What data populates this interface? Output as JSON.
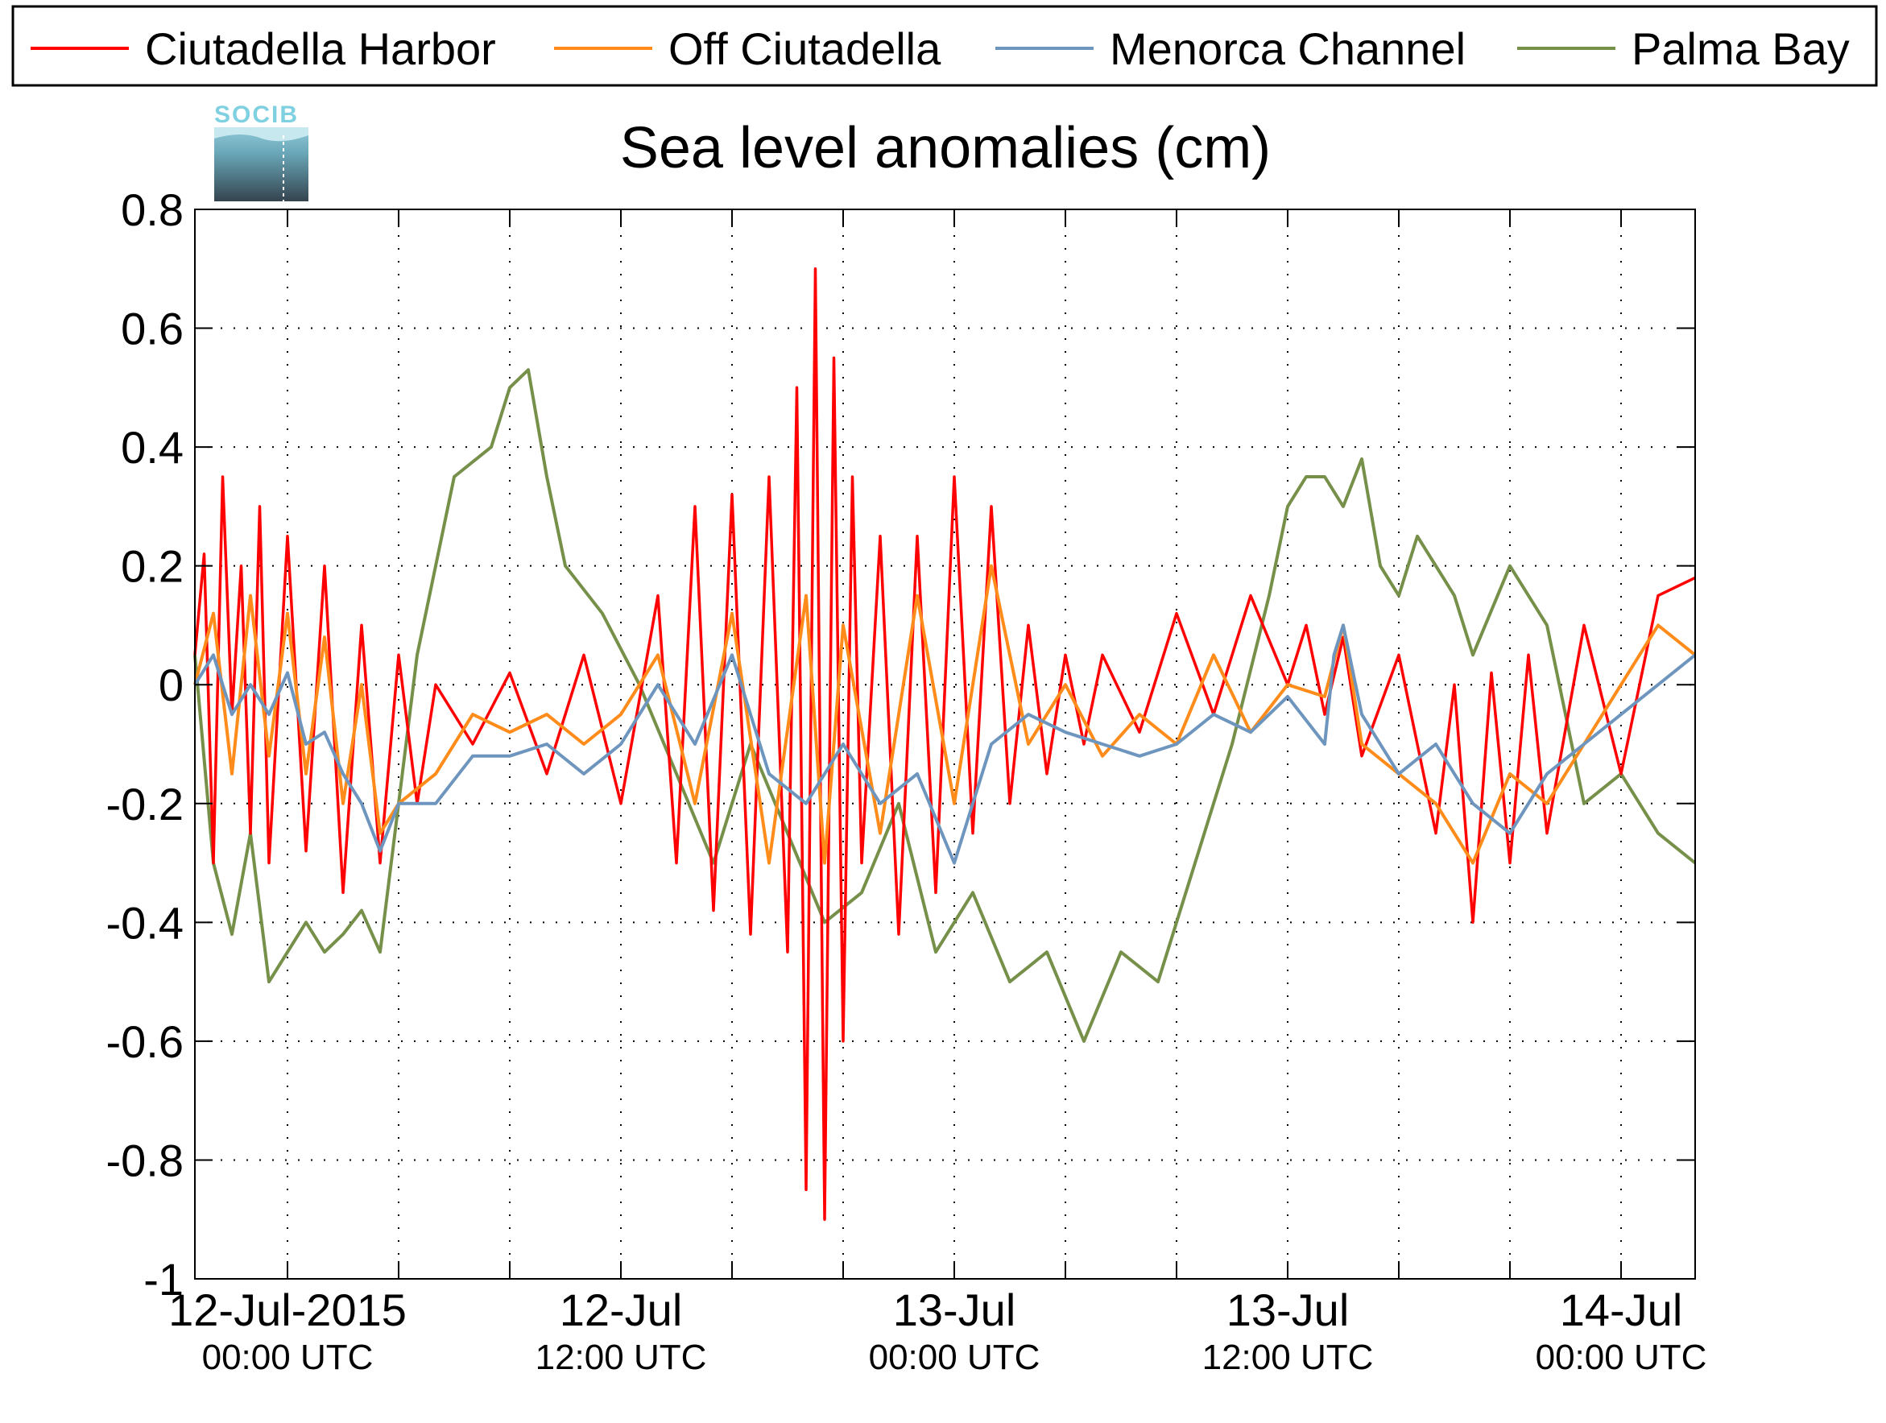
{
  "logo": {
    "text": "SOCIB"
  },
  "chart_data": {
    "type": "line",
    "title": "Sea level anomalies (cm)",
    "xlabel": "",
    "ylabel": "",
    "ylim": [
      -1,
      0.8
    ],
    "yticks": [
      -1,
      -0.8,
      -0.6,
      -0.4,
      -0.2,
      0,
      0.2,
      0.4,
      0.6,
      0.8
    ],
    "ytick_labels": [
      "-1",
      "-0.8",
      "-0.6",
      "-0.4",
      "-0.2",
      "0",
      "0.2",
      "0.4",
      "0.6",
      "0.8"
    ],
    "x_unit": "hours since 12-Jul-2015 00:00 UTC",
    "xlim": [
      -5,
      76
    ],
    "xticks": [
      0,
      18,
      36,
      54,
      72
    ],
    "xtick_labels": [
      {
        "date": "12-Jul-2015",
        "time": "00:00 UTC"
      },
      {
        "date": "12-Jul",
        "time": "12:00 UTC"
      },
      {
        "date": "13-Jul",
        "time": "00:00 UTC"
      },
      {
        "date": "13-Jul",
        "time": "12:00 UTC"
      },
      {
        "date": "14-Jul",
        "time": "00:00 UTC"
      }
    ],
    "grid": true,
    "legend": "top",
    "series": [
      {
        "name": "Ciutadella Harbor",
        "color": "#ff0000",
        "x": [
          -5,
          -4.5,
          -4,
          -3.5,
          -3,
          -2.5,
          -2,
          -1.5,
          -1,
          0,
          1,
          2,
          3,
          4,
          5,
          6,
          7,
          8,
          10,
          12,
          14,
          16,
          18,
          20,
          21,
          22,
          23,
          24,
          25,
          26,
          27,
          27.5,
          28,
          28.5,
          29,
          29.5,
          30,
          30.5,
          31,
          32,
          33,
          34,
          35,
          36,
          37,
          38,
          39,
          40,
          41,
          42,
          43,
          44,
          46,
          48,
          50,
          52,
          54,
          55,
          56,
          57,
          58,
          60,
          62,
          63,
          64,
          65,
          66,
          67,
          68,
          70,
          72,
          74,
          76
        ],
        "y": [
          0.05,
          0.22,
          -0.3,
          0.35,
          -0.05,
          0.2,
          -0.25,
          0.3,
          -0.3,
          0.25,
          -0.28,
          0.2,
          -0.35,
          0.1,
          -0.3,
          0.05,
          -0.2,
          0.0,
          -0.1,
          0.02,
          -0.15,
          0.05,
          -0.2,
          0.15,
          -0.3,
          0.3,
          -0.38,
          0.32,
          -0.42,
          0.35,
          -0.45,
          0.5,
          -0.85,
          0.7,
          -0.9,
          0.55,
          -0.6,
          0.35,
          -0.3,
          0.25,
          -0.42,
          0.25,
          -0.35,
          0.35,
          -0.25,
          0.3,
          -0.2,
          0.1,
          -0.15,
          0.05,
          -0.1,
          0.05,
          -0.08,
          0.12,
          -0.05,
          0.15,
          0.0,
          0.1,
          -0.05,
          0.08,
          -0.12,
          0.05,
          -0.25,
          0.0,
          -0.4,
          0.02,
          -0.3,
          0.05,
          -0.25,
          0.1,
          -0.15,
          0.15,
          0.18
        ]
      },
      {
        "name": "Off Ciutadella",
        "color": "#ff8c1a",
        "x": [
          -5,
          -4,
          -3,
          -2,
          -1,
          0,
          1,
          2,
          3,
          4,
          5,
          6,
          8,
          10,
          12,
          14,
          16,
          18,
          20,
          22,
          24,
          26,
          28,
          29,
          30,
          32,
          34,
          36,
          38,
          40,
          42,
          44,
          46,
          48,
          50,
          52,
          54,
          56,
          57,
          58,
          60,
          62,
          64,
          66,
          68,
          70,
          72,
          74,
          76
        ],
        "y": [
          0.0,
          0.12,
          -0.15,
          0.15,
          -0.12,
          0.12,
          -0.15,
          0.08,
          -0.2,
          0.0,
          -0.25,
          -0.2,
          -0.15,
          -0.05,
          -0.08,
          -0.05,
          -0.1,
          -0.05,
          0.05,
          -0.2,
          0.12,
          -0.3,
          0.15,
          -0.3,
          0.1,
          -0.25,
          0.15,
          -0.2,
          0.2,
          -0.1,
          0.0,
          -0.12,
          -0.05,
          -0.1,
          0.05,
          -0.08,
          0.0,
          -0.02,
          0.1,
          -0.1,
          -0.15,
          -0.2,
          -0.3,
          -0.15,
          -0.2,
          -0.1,
          0.0,
          0.1,
          0.05
        ]
      },
      {
        "name": "Menorca Channel",
        "color": "#6e95bd",
        "x": [
          -5,
          -4,
          -3,
          -2,
          -1,
          0,
          1,
          2,
          3,
          4,
          5,
          6,
          8,
          10,
          12,
          14,
          16,
          18,
          20,
          22,
          24,
          26,
          28,
          30,
          32,
          34,
          36,
          38,
          40,
          42,
          44,
          46,
          48,
          50,
          52,
          54,
          56,
          56.5,
          57,
          58,
          60,
          62,
          64,
          66,
          68,
          70,
          72,
          74,
          76
        ],
        "y": [
          0.0,
          0.05,
          -0.05,
          0.0,
          -0.05,
          0.02,
          -0.1,
          -0.08,
          -0.15,
          -0.2,
          -0.28,
          -0.2,
          -0.2,
          -0.12,
          -0.12,
          -0.1,
          -0.15,
          -0.1,
          0.0,
          -0.1,
          0.05,
          -0.15,
          -0.2,
          -0.1,
          -0.2,
          -0.15,
          -0.3,
          -0.1,
          -0.05,
          -0.08,
          -0.1,
          -0.12,
          -0.1,
          -0.05,
          -0.08,
          -0.02,
          -0.1,
          0.05,
          0.1,
          -0.05,
          -0.15,
          -0.1,
          -0.2,
          -0.25,
          -0.15,
          -0.1,
          -0.05,
          0.0,
          0.05
        ]
      },
      {
        "name": "Palma Bay",
        "color": "#76904a",
        "x": [
          -5,
          -4,
          -3,
          -2,
          -1,
          0,
          1,
          2,
          3,
          4,
          5,
          7,
          9,
          11,
          12,
          13,
          14,
          15,
          17,
          19,
          21,
          23,
          25,
          27,
          29,
          31,
          33,
          35,
          37,
          39,
          41,
          43,
          45,
          47,
          49,
          51,
          53,
          54,
          55,
          56,
          57,
          58,
          59,
          60,
          61,
          62,
          63,
          64,
          66,
          68,
          70,
          72,
          74,
          76
        ],
        "y": [
          0.05,
          -0.3,
          -0.42,
          -0.25,
          -0.5,
          -0.45,
          -0.4,
          -0.45,
          -0.42,
          -0.38,
          -0.45,
          0.05,
          0.35,
          0.4,
          0.5,
          0.53,
          0.35,
          0.2,
          0.12,
          0.0,
          -0.15,
          -0.3,
          -0.1,
          -0.25,
          -0.4,
          -0.35,
          -0.2,
          -0.45,
          -0.35,
          -0.5,
          -0.45,
          -0.6,
          -0.45,
          -0.5,
          -0.3,
          -0.1,
          0.15,
          0.3,
          0.35,
          0.35,
          0.3,
          0.38,
          0.2,
          0.15,
          0.25,
          0.2,
          0.15,
          0.05,
          0.2,
          0.1,
          -0.2,
          -0.15,
          -0.25,
          -0.3
        ]
      }
    ]
  }
}
